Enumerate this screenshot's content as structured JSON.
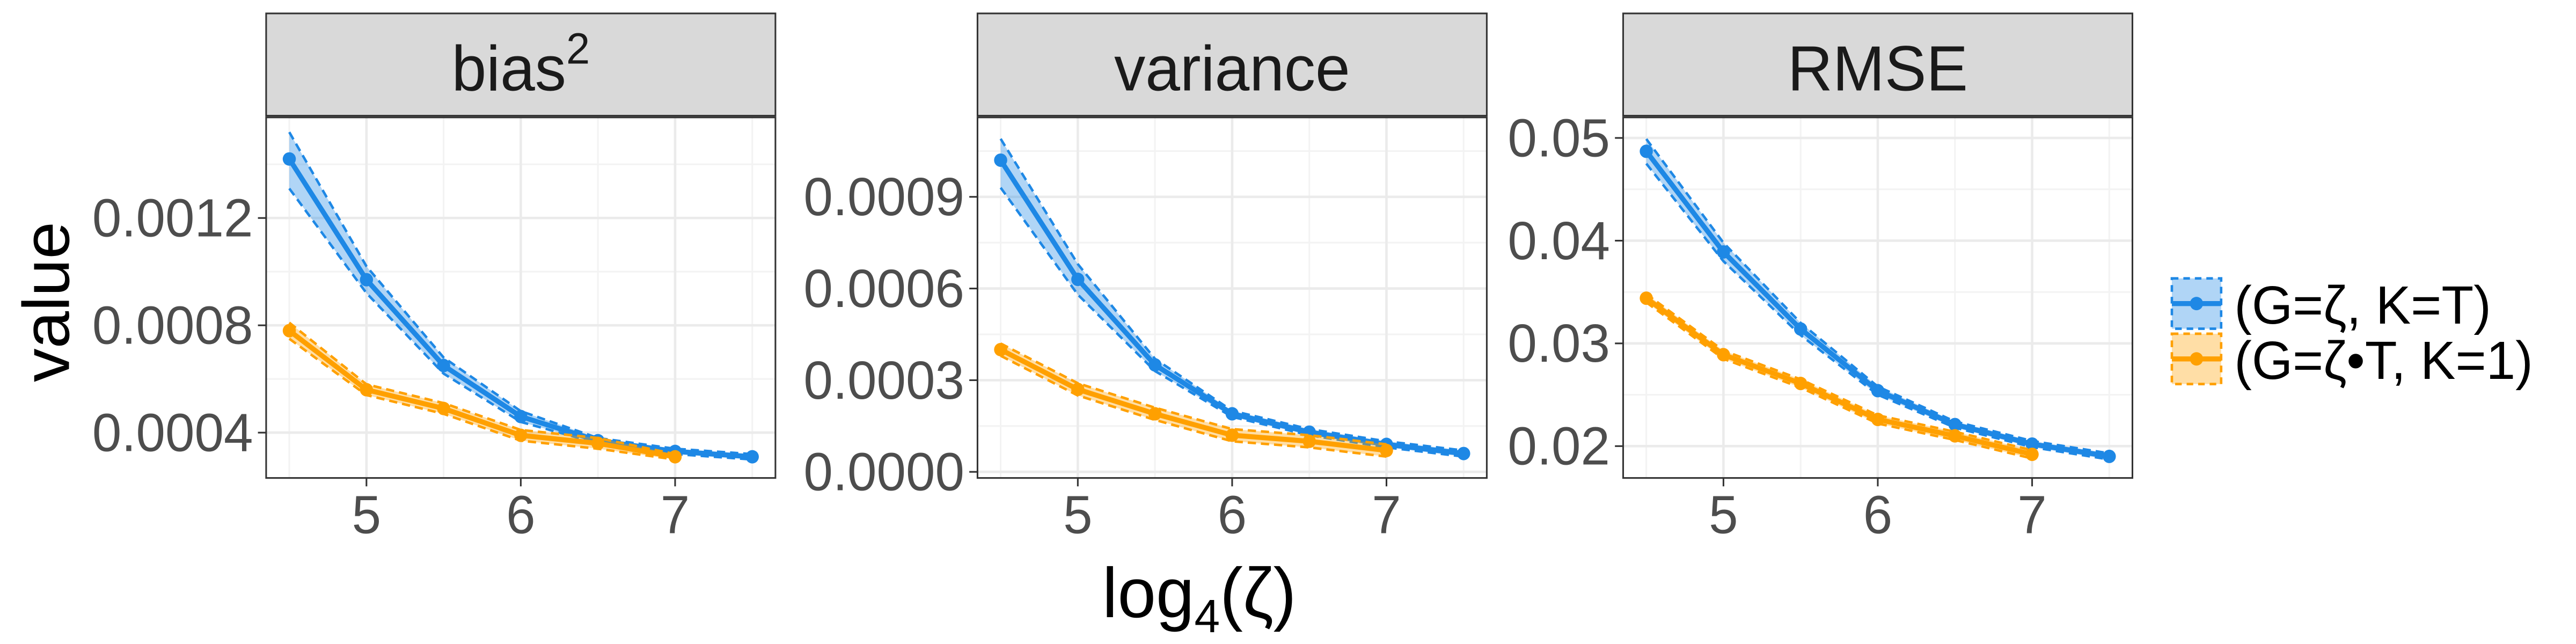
{
  "x_label": {
    "text": "log",
    "sub": "4",
    "rest": "(ζ)"
  },
  "y_label": "value",
  "legend": [
    {
      "name": "(G=ζ, K=T)",
      "color": "#1e88e5"
    },
    {
      "name": "(G=ζ•T, K=1)",
      "color": "#ffa000"
    }
  ],
  "chart_data": [
    {
      "type": "line",
      "title": "bias",
      "title_sup": "2",
      "xlim": [
        4.35,
        7.65
      ],
      "xticks": [
        5,
        6,
        7
      ],
      "ylim": [
        0.000231,
        0.001575
      ],
      "yticks": [
        0.0004,
        0.0008,
        0.0012
      ],
      "grid": true,
      "series": [
        {
          "color": "#1e88e5",
          "x": [
            4.5,
            5,
            5.5,
            6,
            6.5,
            7,
            7.5
          ],
          "values": [
            0.00142,
            0.00097,
            0.00065,
            0.00046,
            0.00037,
            0.00033,
            0.00031
          ],
          "lower": [
            0.00131,
            0.00092,
            0.00062,
            0.00044,
            0.00036,
            0.00032,
            0.0003
          ],
          "upper": [
            0.00152,
            0.00102,
            0.00068,
            0.00048,
            0.00038,
            0.00034,
            0.00032
          ]
        },
        {
          "color": "#ffa000",
          "x": [
            4.5,
            5,
            5.5,
            6,
            6.5,
            7
          ],
          "values": [
            0.00078,
            0.00056,
            0.00049,
            0.00039,
            0.00036,
            0.00031
          ],
          "lower": [
            0.00075,
            0.00054,
            0.00047,
            0.00037,
            0.00034,
            0.0003
          ],
          "upper": [
            0.00081,
            0.00058,
            0.00051,
            0.00041,
            0.00038,
            0.00032
          ]
        }
      ]
    },
    {
      "type": "line",
      "title": "variance",
      "xlim": [
        4.35,
        7.65
      ],
      "xticks": [
        5,
        6,
        7
      ],
      "ylim": [
        -2e-05,
        0.00116
      ],
      "yticks": [
        {
          "value": 0,
          "label": "0.0000"
        },
        0.0003,
        0.0006,
        0.0009
      ],
      "grid": true,
      "series": [
        {
          "color": "#1e88e5",
          "x": [
            4.5,
            5,
            5.5,
            6,
            6.5,
            7,
            7.5
          ],
          "values": [
            0.00102,
            0.00063,
            0.00035,
            0.00019,
            0.00013,
            9e-05,
            6e-05
          ],
          "lower": [
            0.00093,
            0.00058,
            0.00033,
            0.00018,
            0.00012,
            8e-05,
            5e-05
          ],
          "upper": [
            0.00109,
            0.00068,
            0.00037,
            0.0002,
            0.00014,
            0.0001,
            7e-05
          ]
        },
        {
          "color": "#ffa000",
          "x": [
            4.5,
            5,
            5.5,
            6,
            6.5,
            7
          ],
          "values": [
            0.0004,
            0.00027,
            0.00019,
            0.00012,
            0.0001,
            7e-05
          ],
          "lower": [
            0.00038,
            0.00025,
            0.00017,
            0.0001,
            8e-05,
            5e-05
          ],
          "upper": [
            0.00042,
            0.00029,
            0.00021,
            0.00014,
            0.00012,
            9e-05
          ]
        }
      ]
    },
    {
      "type": "line",
      "title": "RMSE",
      "xlim": [
        4.35,
        7.65
      ],
      "xticks": [
        5,
        6,
        7
      ],
      "ylim": [
        0.0169,
        0.052
      ],
      "yticks": [
        0.02,
        0.03,
        0.04,
        0.05
      ],
      "grid": true,
      "series": [
        {
          "color": "#1e88e5",
          "x": [
            4.5,
            5,
            5.5,
            6,
            6.5,
            7,
            7.5
          ],
          "values": [
            0.0487,
            0.0389,
            0.0314,
            0.0254,
            0.0221,
            0.0202,
            0.019
          ],
          "lower": [
            0.0475,
            0.038,
            0.0308,
            0.025,
            0.0218,
            0.0199,
            0.0187
          ],
          "upper": [
            0.0499,
            0.0398,
            0.032,
            0.0258,
            0.0224,
            0.0205,
            0.0193
          ]
        },
        {
          "color": "#ffa000",
          "x": [
            4.5,
            5,
            5.5,
            6,
            6.5,
            7
          ],
          "values": [
            0.0344,
            0.0289,
            0.0261,
            0.0226,
            0.021,
            0.0192
          ],
          "lower": [
            0.034,
            0.0285,
            0.0257,
            0.0222,
            0.0206,
            0.0188
          ],
          "upper": [
            0.0348,
            0.0293,
            0.0265,
            0.023,
            0.0214,
            0.0196
          ]
        }
      ]
    }
  ]
}
